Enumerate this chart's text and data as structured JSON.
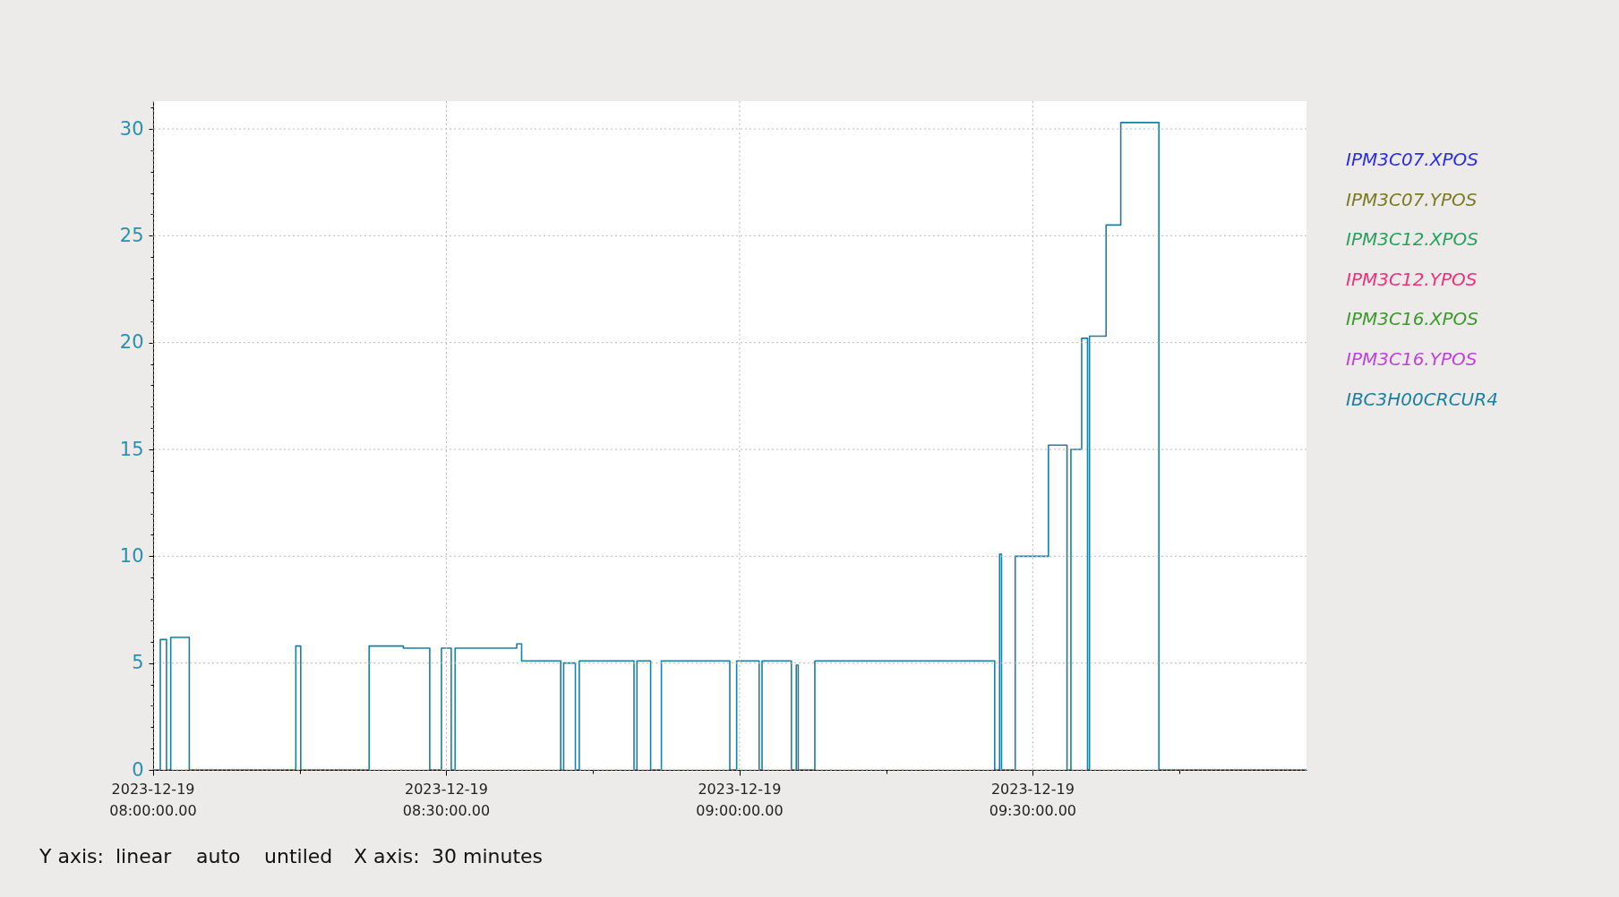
{
  "chart_data": {
    "type": "step",
    "x": [
      "2023-12-19T08:00:00",
      "2023-12-19T08:00:44",
      "2023-12-19T08:01:22",
      "2023-12-19T08:01:48",
      "2023-12-19T08:03:42",
      "2023-12-19T08:14:36",
      "2023-12-19T08:15:06",
      "2023-12-19T08:22:06",
      "2023-12-19T08:25:36",
      "2023-12-19T08:28:18",
      "2023-12-19T08:29:30",
      "2023-12-19T08:30:30",
      "2023-12-19T08:30:54",
      "2023-12-19T08:37:12",
      "2023-12-19T08:37:42",
      "2023-12-19T08:41:42",
      "2023-12-19T08:42:00",
      "2023-12-19T08:43:12",
      "2023-12-19T08:43:36",
      "2023-12-19T08:49:12",
      "2023-12-19T08:49:30",
      "2023-12-19T08:50:54",
      "2023-12-19T08:52:00",
      "2023-12-19T08:59:00",
      "2023-12-19T08:59:42",
      "2023-12-19T09:02:00",
      "2023-12-19T09:02:18",
      "2023-12-19T09:05:18",
      "2023-12-19T09:05:48",
      "2023-12-19T09:06:00",
      "2023-12-19T09:07:42",
      "2023-12-19T09:26:06",
      "2023-12-19T09:26:36",
      "2023-12-19T09:26:48",
      "2023-12-19T09:28:12",
      "2023-12-19T09:31:36",
      "2023-12-19T09:33:30",
      "2023-12-19T09:33:54",
      "2023-12-19T09:35:00",
      "2023-12-19T09:35:36",
      "2023-12-19T09:35:48",
      "2023-12-19T09:37:30",
      "2023-12-19T09:39:00",
      "2023-12-19T09:42:54",
      "2023-12-19T09:58:00"
    ],
    "series": [
      {
        "name": "IPM3C07.XPOS",
        "color": "#2a2af0",
        "values": [
          null,
          null,
          null,
          null,
          null,
          null,
          null,
          null,
          null,
          null,
          null,
          null,
          null,
          null,
          null,
          null,
          null,
          null,
          null,
          null,
          null,
          null,
          null,
          null,
          null,
          null,
          null,
          null,
          null,
          null,
          null,
          null,
          null,
          null,
          null,
          null,
          null,
          null,
          null,
          null,
          null,
          null,
          null,
          null,
          null
        ]
      },
      {
        "name": "IPM3C07.YPOS",
        "color": "#7a7a20",
        "values": [
          null,
          null,
          null,
          null,
          null,
          null,
          null,
          null,
          null,
          null,
          null,
          null,
          null,
          null,
          null,
          null,
          null,
          null,
          null,
          null,
          null,
          null,
          null,
          null,
          null,
          null,
          null,
          null,
          null,
          null,
          null,
          null,
          null,
          null,
          null,
          null,
          null,
          null,
          null,
          null,
          null,
          null,
          null,
          null,
          null
        ]
      },
      {
        "name": "IPM3C12.XPOS",
        "color": "#2aa060",
        "values": [
          null,
          null,
          null,
          null,
          null,
          null,
          null,
          null,
          null,
          null,
          null,
          null,
          null,
          null,
          null,
          null,
          null,
          null,
          null,
          null,
          null,
          null,
          null,
          null,
          null,
          null,
          null,
          null,
          null,
          null,
          null,
          null,
          null,
          null,
          null,
          null,
          null,
          null,
          null,
          null,
          null,
          null,
          null,
          null,
          null
        ]
      },
      {
        "name": "IPM3C12.YPOS",
        "color": "#f0307a",
        "values": [
          null,
          null,
          null,
          null,
          null,
          null,
          null,
          null,
          null,
          null,
          null,
          null,
          null,
          null,
          null,
          null,
          null,
          null,
          null,
          null,
          null,
          null,
          null,
          null,
          null,
          null,
          null,
          null,
          null,
          null,
          null,
          null,
          null,
          null,
          null,
          null,
          null,
          null,
          null,
          null,
          null,
          null,
          null,
          null,
          null
        ]
      },
      {
        "name": "IPM3C16.XPOS",
        "color": "#3a9a2a",
        "values": [
          null,
          null,
          null,
          null,
          null,
          null,
          null,
          null,
          null,
          null,
          null,
          null,
          null,
          null,
          null,
          null,
          null,
          null,
          null,
          null,
          null,
          null,
          null,
          null,
          null,
          null,
          null,
          null,
          null,
          null,
          null,
          null,
          null,
          null,
          null,
          null,
          null,
          null,
          null,
          null,
          null,
          null,
          null,
          null,
          null
        ]
      },
      {
        "name": "IPM3C16.YPOS",
        "color": "#c040e0",
        "values": [
          null,
          null,
          null,
          null,
          null,
          null,
          null,
          null,
          null,
          null,
          null,
          null,
          null,
          null,
          null,
          null,
          null,
          null,
          null,
          null,
          null,
          null,
          null,
          null,
          null,
          null,
          null,
          null,
          null,
          null,
          null,
          null,
          null,
          null,
          null,
          null,
          null,
          null,
          null,
          null,
          null,
          null,
          null,
          null,
          null
        ]
      },
      {
        "name": "IBC3H00CRCUR4",
        "color": "#1a7fa0",
        "values": [
          0,
          6.1,
          0,
          6.2,
          0,
          5.8,
          0,
          5.8,
          5.7,
          0,
          5.7,
          0,
          5.7,
          5.9,
          5.1,
          0,
          5.0,
          0,
          5.1,
          0,
          5.1,
          0,
          5.1,
          0,
          5.1,
          0,
          5.1,
          0,
          4.9,
          0,
          5.1,
          0,
          10.1,
          0,
          10.0,
          15.2,
          0,
          15.0,
          20.2,
          0,
          20.3,
          25.5,
          30.3,
          0,
          0
        ]
      }
    ],
    "xlim": [
      "2023-12-19T08:00",
      "2023-12-19T09:58"
    ],
    "xticks": [
      {
        "value": "2023-12-19T08:00",
        "label": "2023-12-19\n08:00:00.00"
      },
      {
        "value": "2023-12-19T08:15",
        "label": null
      },
      {
        "value": "2023-12-19T08:30",
        "label": "2023-12-19\n08:30:00.00"
      },
      {
        "value": "2023-12-19T08:45",
        "label": null
      },
      {
        "value": "2023-12-19T09:00",
        "label": "2023-12-19\n09:00:00.00"
      },
      {
        "value": "2023-12-19T09:15",
        "label": null
      },
      {
        "value": "2023-12-19T09:30",
        "label": "2023-12-19\n09:30:00.00"
      },
      {
        "value": "2023-12-19T09:45",
        "label": null
      }
    ],
    "ylim": [
      0,
      31.3
    ],
    "yticks": [
      0,
      {
        "value": 1,
        "label": null
      },
      {
        "value": 2,
        "label": null
      },
      {
        "value": 3,
        "label": null
      },
      {
        "value": 4,
        "label": null
      },
      5,
      {
        "value": 6,
        "label": null
      },
      {
        "value": 7,
        "label": null
      },
      {
        "value": 8,
        "label": null
      },
      {
        "value": 9,
        "label": null
      },
      10,
      {
        "value": 11,
        "label": null
      },
      {
        "value": 12,
        "label": null
      },
      {
        "value": 13,
        "label": null
      },
      {
        "value": 14,
        "label": null
      },
      15,
      {
        "value": 16,
        "label": null
      },
      {
        "value": 17,
        "label": null
      },
      {
        "value": 18,
        "label": null
      },
      {
        "value": 19,
        "label": null
      },
      20,
      {
        "value": 21,
        "label": null
      },
      {
        "value": 22,
        "label": null
      },
      {
        "value": 23,
        "label": null
      },
      {
        "value": 24,
        "label": null
      },
      25,
      {
        "value": 26,
        "label": null
      },
      {
        "value": 27,
        "label": null
      },
      {
        "value": 28,
        "label": null
      },
      {
        "value": 29,
        "label": null
      },
      30,
      {
        "value": 31,
        "label": null
      }
    ],
    "grid": true,
    "legend": "right",
    "annotations": [
      "Y axis:",
      "linear",
      "auto",
      "untiled",
      "X axis:",
      "30 minutes"
    ]
  }
}
